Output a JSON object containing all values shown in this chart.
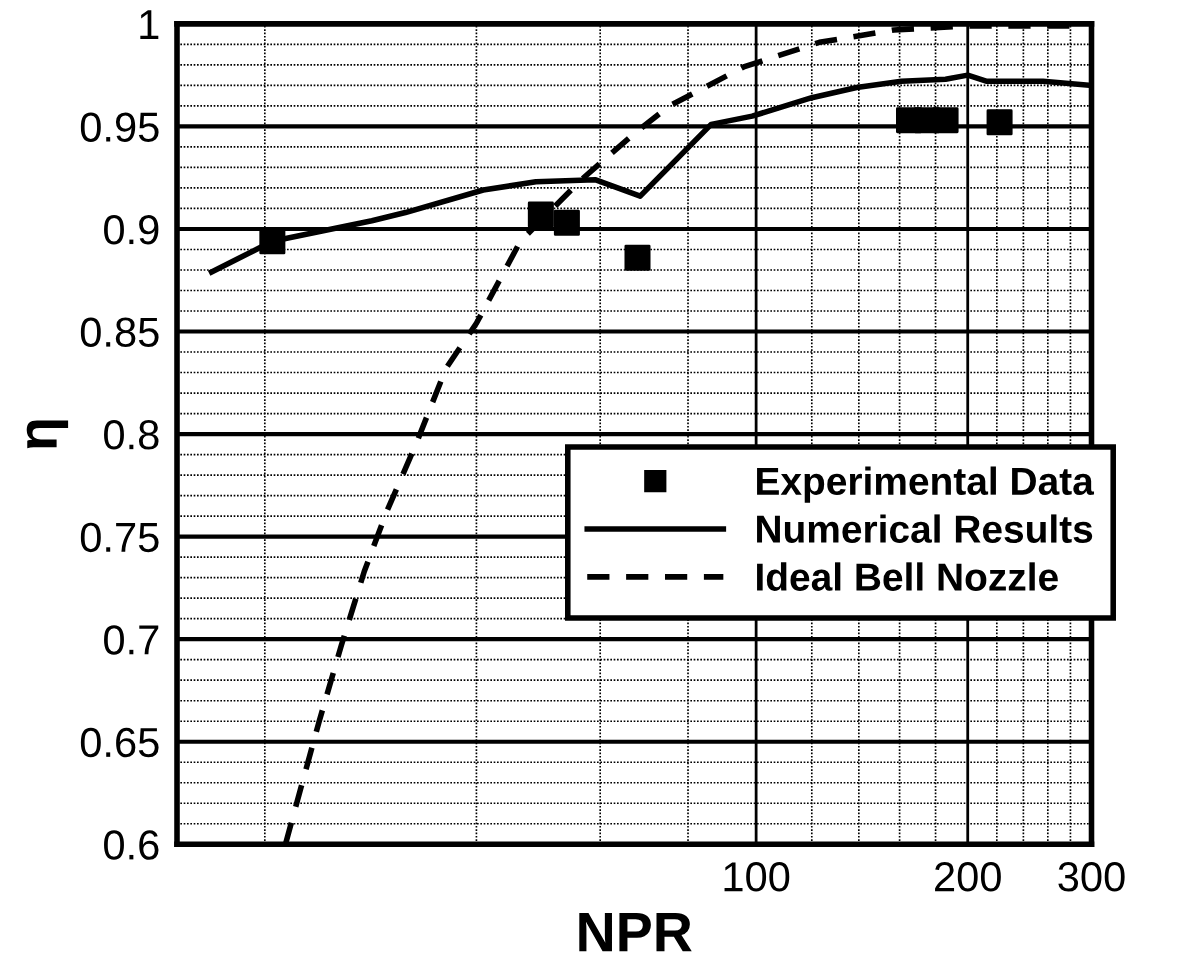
{
  "chart_data": {
    "type": "line",
    "xlabel": "NPR",
    "ylabel": "η",
    "log": "x",
    "grid": true,
    "legend": "center right",
    "xlim": [
      15,
      300
    ],
    "ylim": [
      0.6,
      1
    ],
    "xticks": [
      {
        "value": 20,
        "label": null
      },
      {
        "value": 40,
        "label": null
      },
      {
        "value": 60,
        "label": null
      },
      {
        "value": 80,
        "label": null
      },
      100,
      {
        "value": 120,
        "label": null
      },
      {
        "value": 140,
        "label": null
      },
      {
        "value": 160,
        "label": null
      },
      {
        "value": 180,
        "label": null
      },
      200,
      {
        "value": 220,
        "label": null
      },
      {
        "value": 240,
        "label": null
      },
      {
        "value": 260,
        "label": null
      },
      {
        "value": 280,
        "label": null
      },
      300
    ],
    "yticks": [
      0.6,
      {
        "value": 0.61,
        "label": null
      },
      {
        "value": 0.62,
        "label": null
      },
      {
        "value": 0.63,
        "label": null
      },
      {
        "value": 0.64,
        "label": null
      },
      0.65,
      {
        "value": 0.66,
        "label": null
      },
      {
        "value": 0.67,
        "label": null
      },
      {
        "value": 0.68,
        "label": null
      },
      {
        "value": 0.69,
        "label": null
      },
      0.7,
      {
        "value": 0.71,
        "label": null
      },
      {
        "value": 0.72,
        "label": null
      },
      {
        "value": 0.73,
        "label": null
      },
      {
        "value": 0.74,
        "label": null
      },
      0.75,
      {
        "value": 0.76,
        "label": null
      },
      {
        "value": 0.77,
        "label": null
      },
      {
        "value": 0.78,
        "label": null
      },
      {
        "value": 0.79,
        "label": null
      },
      0.8,
      {
        "value": 0.81,
        "label": null
      },
      {
        "value": 0.82,
        "label": null
      },
      {
        "value": 0.83,
        "label": null
      },
      {
        "value": 0.84,
        "label": null
      },
      0.85,
      {
        "value": 0.86,
        "label": null
      },
      {
        "value": 0.87,
        "label": null
      },
      {
        "value": 0.88,
        "label": null
      },
      {
        "value": 0.89,
        "label": null
      },
      0.9,
      {
        "value": 0.91,
        "label": null
      },
      {
        "value": 0.92,
        "label": null
      },
      {
        "value": 0.93,
        "label": null
      },
      {
        "value": 0.94,
        "label": null
      },
      0.95,
      {
        "value": 0.96,
        "label": null
      },
      {
        "value": 0.97,
        "label": null
      },
      {
        "value": 0.98,
        "label": null
      },
      {
        "value": 0.99,
        "label": null
      },
      1
    ],
    "series": [
      {
        "name": "Experimental Data",
        "type": "scatter",
        "marker": "square",
        "color": "#000000",
        "x": [
          20.5,
          49.4,
          53.8,
          67.8,
          165,
          175,
          186,
          222
        ],
        "values": [
          0.894,
          0.907,
          0.903,
          0.886,
          0.953,
          0.953,
          0.953,
          0.952
        ]
      },
      {
        "name": "Numerical Results",
        "line_style": "solid",
        "color": "#000000",
        "x": [
          16.8,
          20.5,
          28.4,
          31.7,
          40.9,
          48.6,
          59,
          68.4,
          86.3,
          98.7,
          120,
          139,
          161,
          186,
          200,
          213,
          256,
          300
        ],
        "values": [
          0.879,
          0.894,
          0.904,
          0.908,
          0.919,
          0.923,
          0.924,
          0.916,
          0.951,
          0.955,
          0.964,
          0.969,
          0.972,
          0.973,
          0.975,
          0.972,
          0.972,
          0.97
        ]
      },
      {
        "name": "Ideal Bell Nozzle",
        "line_style": "dashed",
        "color": "#000000",
        "x": [
          21.4,
          22.2,
          23.9,
          25.7,
          27.7,
          29.8,
          32.9,
          36.2,
          40,
          46.2,
          56.4,
          66.8,
          75.3,
          96,
          123,
          157,
          200,
          285
        ],
        "values": [
          0.6,
          0.62,
          0.66,
          0.697,
          0.733,
          0.762,
          0.796,
          0.832,
          0.854,
          0.894,
          0.924,
          0.946,
          0.96,
          0.979,
          0.991,
          0.997,
          0.999,
          0.999
        ]
      }
    ]
  }
}
